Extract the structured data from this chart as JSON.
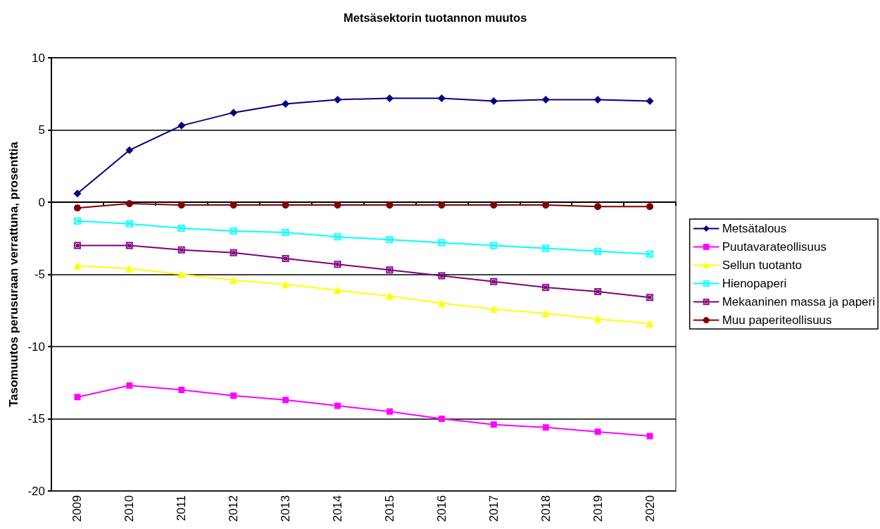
{
  "chart_data": {
    "type": "line",
    "title": "Metsäsektorin tuotannon muutos",
    "ylabel": "Tasomuutos perusuraan verrattuna, prosenttia",
    "categories": [
      "2009",
      "2010",
      "2011",
      "2012",
      "2013",
      "2014",
      "2015",
      "2016",
      "2017",
      "2018",
      "2019",
      "2020"
    ],
    "series": [
      {
        "name": "Metsätalous",
        "color": "#000080",
        "marker": "diamond",
        "values": [
          0.6,
          3.6,
          5.3,
          6.2,
          6.8,
          7.1,
          7.2,
          7.2,
          7.0,
          7.1,
          7.1,
          7.0
        ]
      },
      {
        "name": "Puutavarateollisuus",
        "color": "#ff00ff",
        "marker": "square",
        "values": [
          -13.5,
          -12.7,
          -13.0,
          -13.4,
          -13.7,
          -14.1,
          -14.5,
          -15.0,
          -15.4,
          -15.6,
          -15.9,
          -16.2
        ]
      },
      {
        "name": "Sellun tuotanto",
        "color": "#ffff00",
        "marker": "triangle",
        "values": [
          -4.4,
          -4.6,
          -5.0,
          -5.4,
          -5.7,
          -6.1,
          -6.5,
          -7.0,
          -7.4,
          -7.7,
          -8.1,
          -8.4
        ]
      },
      {
        "name": "Hienopaperi",
        "color": "#00ffff",
        "marker": "cross",
        "values": [
          -1.3,
          -1.5,
          -1.8,
          -2.0,
          -2.1,
          -2.4,
          -2.6,
          -2.8,
          -3.0,
          -3.2,
          -3.4,
          -3.6
        ]
      },
      {
        "name": "Mekaaninen massa ja paperi",
        "color": "#800080",
        "marker": "star",
        "values": [
          -3.0,
          -3.0,
          -3.3,
          -3.5,
          -3.9,
          -4.3,
          -4.7,
          -5.1,
          -5.5,
          -5.9,
          -6.2,
          -6.6
        ]
      },
      {
        "name": "Muu paperiteollisuus",
        "color": "#800000",
        "marker": "circle",
        "values": [
          -0.4,
          -0.1,
          -0.2,
          -0.2,
          -0.2,
          -0.2,
          -0.2,
          -0.2,
          -0.2,
          -0.2,
          -0.3,
          -0.3
        ]
      }
    ],
    "ylim": [
      -20,
      10
    ],
    "yticks": [
      -20,
      -15,
      -10,
      -5,
      0,
      5,
      10
    ],
    "grid": "y",
    "legend": "right"
  }
}
